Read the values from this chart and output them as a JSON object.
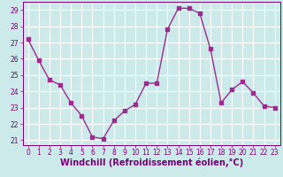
{
  "x": [
    0,
    1,
    2,
    3,
    4,
    5,
    6,
    7,
    8,
    9,
    10,
    11,
    12,
    13,
    14,
    15,
    16,
    17,
    18,
    19,
    20,
    21,
    22,
    23
  ],
  "y": [
    27.2,
    25.9,
    24.7,
    24.4,
    23.3,
    22.5,
    21.2,
    21.1,
    22.2,
    22.8,
    23.2,
    24.5,
    24.5,
    27.8,
    29.1,
    29.1,
    28.8,
    26.6,
    23.3,
    24.1,
    24.6,
    23.9,
    23.1,
    23.0
  ],
  "line_color": "#9b2d8e",
  "marker": "s",
  "markersize": 2.2,
  "linewidth": 1.0,
  "bg_color": "#cceaea",
  "grid_color": "#ffffff",
  "xlabel": "Windchill (Refroidissement éolien,°C)",
  "xlabel_color": "#7b0077",
  "tick_color": "#7b0077",
  "ylim": [
    20.7,
    29.5
  ],
  "xlim": [
    -0.5,
    23.5
  ],
  "yticks": [
    21,
    22,
    23,
    24,
    25,
    26,
    27,
    28,
    29
  ],
  "xticks": [
    0,
    1,
    2,
    3,
    4,
    5,
    6,
    7,
    8,
    9,
    10,
    11,
    12,
    13,
    14,
    15,
    16,
    17,
    18,
    19,
    20,
    21,
    22,
    23
  ],
  "tick_fontsize": 5.5,
  "xlabel_fontsize": 7.0
}
